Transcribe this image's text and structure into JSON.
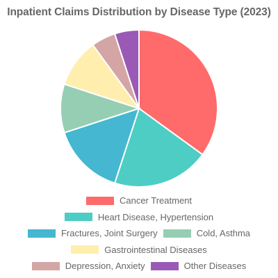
{
  "chart_data": {
    "type": "pie",
    "title": "Inpatient Claims Distribution by Disease Type (2023)",
    "categories": [
      "Cancer Treatment",
      "Heart Disease, Hypertension",
      "Fractures, Joint Surgery",
      "Cold, Asthma",
      "Gastrointestinal Diseases",
      "Depression, Anxiety",
      "Other Diseases"
    ],
    "values": [
      35,
      20,
      15,
      10,
      10,
      5,
      5
    ],
    "colors": [
      "#ff6b6b",
      "#4ecdc4",
      "#45b7d1",
      "#96ceb4",
      "#ffeead",
      "#d4a5a5",
      "#9b59b6"
    ],
    "legend_position": "bottom",
    "legend_rows": [
      [
        0
      ],
      [
        1
      ],
      [
        2,
        3
      ],
      [
        4
      ],
      [
        5,
        6
      ]
    ]
  }
}
